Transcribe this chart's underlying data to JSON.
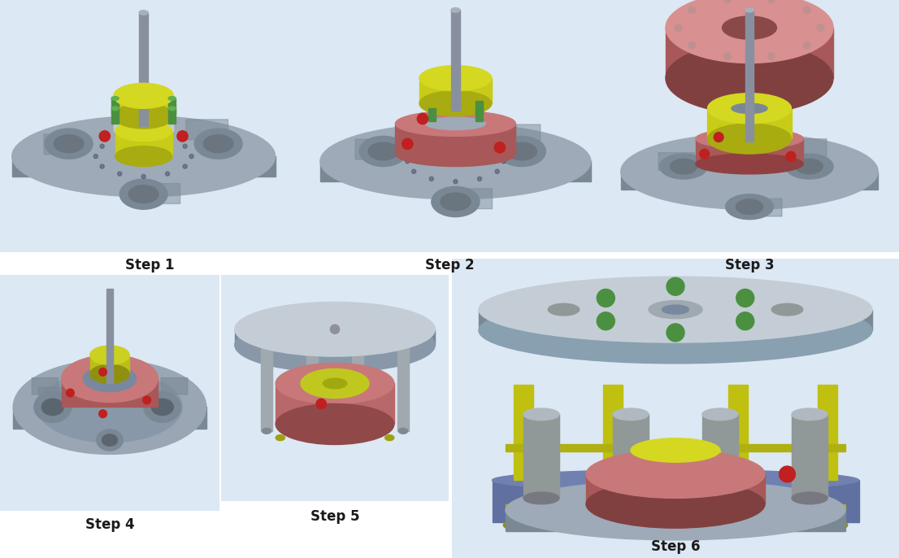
{
  "figure_width": 11.06,
  "figure_height": 6.86,
  "dpi": 100,
  "background_color": "#ffffff",
  "steps": [
    "Step 1",
    "Step 2",
    "Step 3",
    "Step 4",
    "Step 5",
    "Step 6"
  ],
  "label_fontsize": 12,
  "label_fontweight": "bold",
  "label_color": "#1a1a1a",
  "bg_color": "#dce8f4",
  "panel_bg": "#d8e4f0",
  "colors": {
    "gray_platform": "#9eaab7",
    "gray_dark": "#7a8895",
    "gray_light": "#c4cdd6",
    "gray_edge": "#636e78",
    "yellow_top": "#d4d820",
    "yellow_mid": "#c8cc18",
    "yellow_dark": "#a8ac10",
    "red_ring": "#c87878",
    "red_dark": "#a85858",
    "red_light": "#d89090",
    "green_bolt": "#4a9040",
    "red_dot": "#c02020",
    "silver_rod": "#8890a0",
    "silver_light": "#a8b0c0",
    "blue_base": "#6878a8",
    "blue_light": "#8090b8",
    "yellow_frame": "#c0c010",
    "yellow_wheel": "#a0a010"
  }
}
